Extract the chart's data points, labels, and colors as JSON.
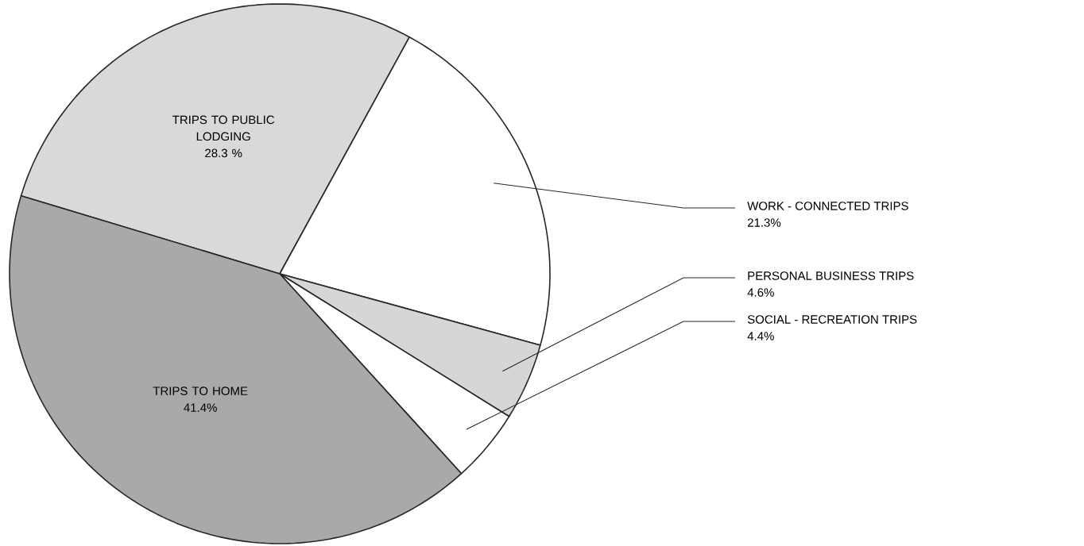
{
  "chart_data": {
    "type": "pie",
    "categories": [
      "TRIPS TO PUBLIC LODGING",
      "WORK - CONNECTED TRIPS",
      "PERSONAL BUSINESS TRIPS",
      "SOCIAL - RECREATION TRIPS",
      "TRIPS TO HOME"
    ],
    "values": [
      28.3,
      21.3,
      4.6,
      4.4,
      41.4
    ],
    "colors": [
      "#d9d9d9",
      "#ffffff",
      "#d6d6d6",
      "#ffffff",
      "#a9a9a9"
    ],
    "value_labels": [
      "28.3 %",
      "21.3%",
      "4.6%",
      "4.4%",
      "41.4%"
    ]
  }
}
